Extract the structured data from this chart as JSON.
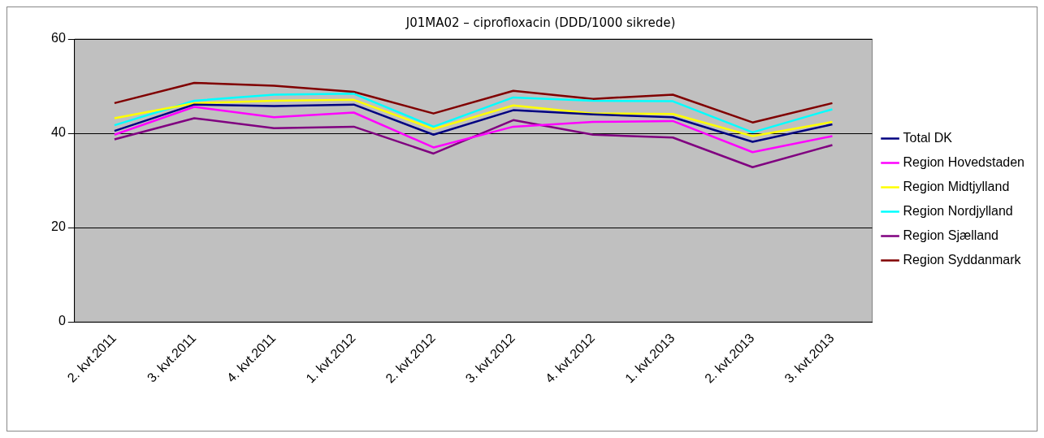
{
  "chart_data": {
    "type": "line",
    "title": "J01MA02 – ciprofloxacin (DDD/1000 sikrede)",
    "categories": [
      "2. kvt.2011",
      "3. kvt.2011",
      "4. kvt.2011",
      "1. kvt.2012",
      "2. kvt.2012",
      "3. kvt.2012",
      "4. kvt.2012",
      "1. kvt.2013",
      "2. kvt.2013",
      "3. kvt.2013"
    ],
    "series": [
      {
        "name": "Total DK",
        "color": "#000080",
        "values": [
          40.5,
          46.1,
          45.8,
          46.1,
          39.7,
          44.9,
          44.0,
          43.4,
          38.2,
          41.9
        ]
      },
      {
        "name": "Region Hovedstaden",
        "color": "#ff00ff",
        "values": [
          39.7,
          45.6,
          43.4,
          44.4,
          37.0,
          41.4,
          42.4,
          42.6,
          36.0,
          39.4
        ]
      },
      {
        "name": "Region Midtjylland",
        "color": "#ffff00",
        "values": [
          43.2,
          46.4,
          46.9,
          47.1,
          40.9,
          45.9,
          44.2,
          44.1,
          39.4,
          42.4
        ]
      },
      {
        "name": "Region Nordjylland",
        "color": "#00ffff",
        "values": [
          41.7,
          46.9,
          48.2,
          48.4,
          41.4,
          47.6,
          46.9,
          46.8,
          40.2,
          45.1
        ]
      },
      {
        "name": "Region Sjælland",
        "color": "#800080",
        "values": [
          38.7,
          43.2,
          41.1,
          41.4,
          35.7,
          42.8,
          39.7,
          39.1,
          32.8,
          37.5
        ]
      },
      {
        "name": "Region Syddanmark",
        "color": "#800000",
        "values": [
          46.4,
          50.7,
          50.1,
          48.8,
          44.2,
          49.0,
          47.3,
          48.2,
          42.3,
          46.4
        ]
      }
    ],
    "ylim": [
      0,
      60
    ],
    "yticks": [
      0,
      20,
      40,
      60
    ],
    "grid": "y",
    "legend": "right",
    "marker": "none",
    "line_style": "solid"
  }
}
